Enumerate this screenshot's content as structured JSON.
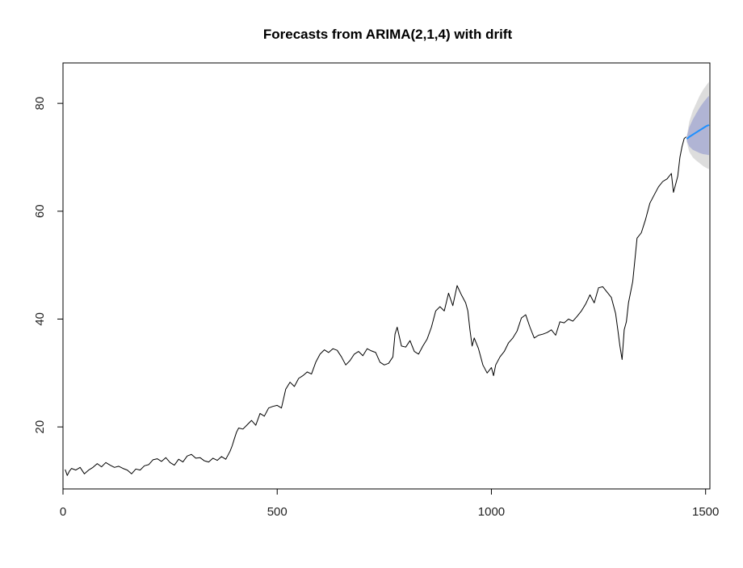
{
  "chart_data": {
    "type": "line",
    "title": "Forecasts from ARIMA(2,1,4) with drift",
    "xlabel": "",
    "ylabel": "",
    "xlim": [
      0,
      1510
    ],
    "ylim": [
      8.5,
      87.5
    ],
    "x_ticks": [
      0,
      500,
      1000,
      1500
    ],
    "y_ticks": [
      20,
      40,
      60,
      80
    ],
    "grid": false,
    "colors": {
      "series": "#000000",
      "forecast": "#1E90FF",
      "band_95": "#DDDDDD",
      "band_80": "#B0B4D4"
    },
    "series": [
      {
        "x": [
          5,
          10,
          15,
          20,
          30,
          40,
          50,
          60,
          70,
          80,
          90,
          100,
          110,
          120,
          130,
          140,
          150,
          160,
          170,
          180,
          190,
          200,
          210,
          220,
          230,
          240,
          250,
          260,
          270,
          280,
          290,
          300,
          310,
          320,
          330,
          340,
          350,
          360,
          370,
          380,
          390,
          395,
          400,
          405,
          410,
          420,
          430,
          440,
          450,
          460,
          470,
          480,
          490,
          500,
          510,
          520,
          530,
          540,
          550,
          560,
          570,
          580,
          590,
          600,
          610,
          620,
          630,
          640,
          650,
          660,
          670,
          680,
          690,
          700,
          710,
          720,
          730,
          740,
          750,
          760,
          770,
          775,
          780,
          790,
          800,
          810,
          820,
          830,
          840,
          850,
          860,
          870,
          880,
          890,
          900,
          910,
          920,
          930,
          940,
          945,
          950,
          955,
          960,
          970,
          980,
          990,
          1000,
          1005,
          1010,
          1020,
          1030,
          1040,
          1050,
          1060,
          1070,
          1080,
          1090,
          1100,
          1110,
          1120,
          1130,
          1140,
          1150,
          1160,
          1170,
          1180,
          1190,
          1200,
          1210,
          1220,
          1230,
          1240,
          1250,
          1260,
          1270,
          1280,
          1290,
          1295,
          1300,
          1305,
          1310,
          1315,
          1320,
          1330,
          1340,
          1350,
          1360,
          1370,
          1380,
          1390,
          1400,
          1410,
          1420,
          1425,
          1430,
          1435,
          1440,
          1445,
          1450,
          1455
        ],
        "values": [
          12.1,
          11.0,
          11.8,
          12.3,
          12.0,
          12.5,
          11.3,
          12.0,
          12.5,
          13.2,
          12.6,
          13.4,
          12.9,
          12.5,
          12.7,
          12.3,
          12.0,
          11.3,
          12.2,
          12.0,
          12.8,
          13.0,
          13.9,
          14.1,
          13.6,
          14.3,
          13.4,
          12.9,
          14.0,
          13.5,
          14.6,
          14.9,
          14.2,
          14.3,
          13.7,
          13.5,
          14.2,
          13.8,
          14.5,
          14.0,
          15.5,
          16.5,
          17.8,
          19.0,
          19.8,
          19.6,
          20.4,
          21.2,
          20.3,
          22.5,
          22.0,
          23.5,
          23.8,
          24.0,
          23.5,
          27.0,
          28.3,
          27.5,
          29.0,
          29.5,
          30.2,
          29.8,
          32.0,
          33.5,
          34.3,
          33.8,
          34.5,
          34.2,
          33.0,
          31.5,
          32.3,
          33.5,
          34.0,
          33.2,
          34.5,
          34.1,
          33.8,
          32.0,
          31.5,
          31.8,
          33.0,
          37.2,
          38.5,
          35.0,
          34.8,
          36.0,
          34.0,
          33.5,
          35.0,
          36.3,
          38.5,
          41.5,
          42.3,
          41.5,
          44.8,
          42.5,
          46.2,
          44.5,
          43.0,
          41.5,
          38.0,
          35.0,
          36.5,
          34.5,
          31.5,
          30.0,
          31.0,
          29.5,
          31.5,
          33.0,
          34.0,
          35.6,
          36.5,
          37.8,
          40.2,
          40.8,
          38.5,
          36.5,
          37.0,
          37.2,
          37.5,
          38.0,
          37.0,
          39.5,
          39.3,
          40.0,
          39.6,
          40.5,
          41.5,
          42.8,
          44.5,
          43.0,
          45.8,
          46.0,
          45.0,
          44.0,
          41.0,
          38.0,
          35.0,
          32.5,
          38.0,
          39.5,
          43.0,
          47.0,
          55.0,
          56.0,
          58.5,
          61.5,
          63.0,
          64.5,
          65.5,
          66.0,
          67.0,
          63.5,
          65.0,
          66.5,
          70.0,
          72.0,
          73.5,
          73.8
        ]
      }
    ],
    "forecast": {
      "x": [
        1456,
        1462,
        1470,
        1478,
        1486,
        1494,
        1502,
        1508
      ],
      "mean": [
        73.4,
        73.8,
        74.2,
        74.6,
        75.0,
        75.4,
        75.8,
        76.0
      ],
      "lo80": [
        73.0,
        72.0,
        71.4,
        71.1,
        70.8,
        70.6,
        70.5,
        70.4
      ],
      "hi80": [
        73.8,
        75.6,
        77.0,
        78.1,
        79.2,
        80.1,
        80.9,
        81.4
      ],
      "lo95": [
        72.8,
        71.0,
        70.0,
        69.4,
        68.9,
        68.4,
        68.0,
        67.8
      ],
      "hi95": [
        74.0,
        76.6,
        78.6,
        80.0,
        81.4,
        82.5,
        83.4,
        84.0
      ]
    }
  }
}
